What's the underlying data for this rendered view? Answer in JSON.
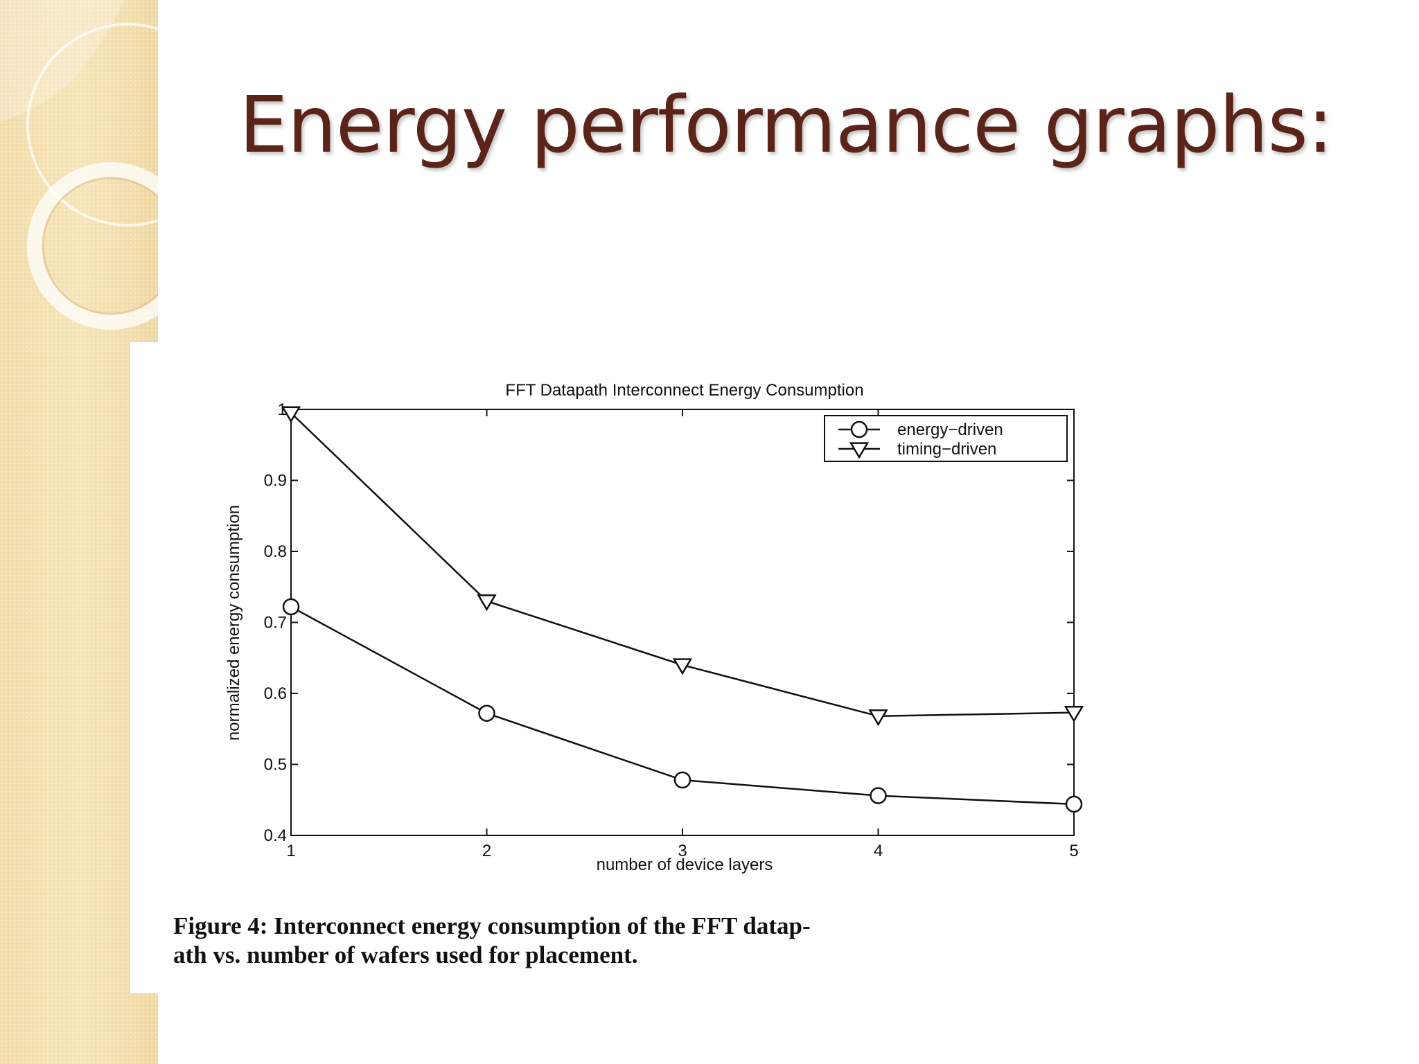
{
  "slide": {
    "title": "Energy performance graphs:"
  },
  "chart_data": {
    "type": "line",
    "title": "FFT Datapath Interconnect Energy Consumption",
    "xlabel": "number of device layers",
    "ylabel": "normalized energy consumption",
    "x": [
      1,
      2,
      3,
      4,
      5
    ],
    "xlim": [
      1,
      5
    ],
    "ylim": [
      0.4,
      1.0
    ],
    "xticks": [
      "1",
      "2",
      "3",
      "4",
      "5"
    ],
    "yticks": [
      "0.4",
      "0.5",
      "0.6",
      "0.7",
      "0.8",
      "0.9",
      "1"
    ],
    "grid": false,
    "legend_position": "top-right",
    "series": [
      {
        "name": "energy−driven",
        "marker": "circle",
        "values": [
          0.722,
          0.572,
          0.478,
          0.456,
          0.444
        ]
      },
      {
        "name": "timing−driven",
        "marker": "triangle-down",
        "values": [
          0.995,
          0.73,
          0.64,
          0.568,
          0.573
        ]
      }
    ]
  },
  "caption": {
    "line1": "Figure 4: Interconnect energy consumption of the FFT datap-",
    "line2": "ath vs. number of wafers used for placement."
  }
}
